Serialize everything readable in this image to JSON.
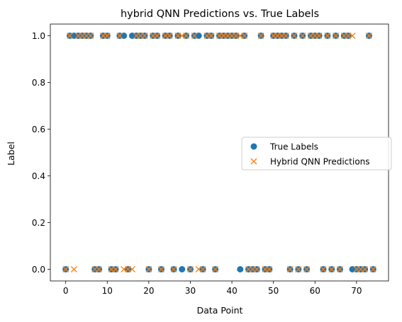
{
  "chart_data": {
    "type": "scatter",
    "title": "hybrid QNN Predictions vs. True Labels",
    "xlabel": "Data Point",
    "ylabel": "Label",
    "xlim": [
      -3.7,
      77.7
    ],
    "ylim": [
      -0.05,
      1.05
    ],
    "x_ticks": [
      0,
      10,
      20,
      30,
      40,
      50,
      60,
      70
    ],
    "y_ticks": [
      0.0,
      0.2,
      0.4,
      0.6,
      0.8,
      1.0
    ],
    "x_tick_labels": [
      "0",
      "10",
      "20",
      "30",
      "40",
      "50",
      "60",
      "70"
    ],
    "y_tick_labels": [
      "0.0",
      "0.2",
      "0.4",
      "0.6",
      "0.8",
      "1.0"
    ],
    "grid": false,
    "legend_position": "center-right",
    "series": [
      {
        "name": "True Labels",
        "marker": "circle",
        "color": "#1f77b4",
        "x": [
          0,
          1,
          2,
          3,
          4,
          5,
          6,
          7,
          8,
          9,
          10,
          11,
          12,
          13,
          14,
          15,
          16,
          17,
          18,
          19,
          20,
          21,
          22,
          23,
          24,
          25,
          26,
          27,
          28,
          29,
          30,
          31,
          32,
          33,
          34,
          35,
          36,
          37,
          38,
          39,
          40,
          41,
          42,
          43,
          44,
          45,
          46,
          47,
          48,
          49,
          50,
          51,
          52,
          53,
          54,
          55,
          56,
          57,
          58,
          59,
          60,
          61,
          62,
          63,
          64,
          65,
          66,
          67,
          68,
          69,
          70,
          71,
          72,
          73,
          74
        ],
        "y": [
          0,
          1,
          1,
          1,
          1,
          1,
          1,
          0,
          0,
          1,
          1,
          0,
          0,
          1,
          1,
          0,
          1,
          1,
          1,
          1,
          0,
          1,
          1,
          0,
          1,
          1,
          0,
          1,
          0,
          1,
          0,
          1,
          1,
          0,
          1,
          1,
          0,
          1,
          1,
          1,
          1,
          1,
          0,
          1,
          0,
          0,
          0,
          1,
          0,
          0,
          1,
          1,
          1,
          1,
          0,
          1,
          0,
          1,
          0,
          1,
          1,
          1,
          0,
          1,
          0,
          1,
          0,
          1,
          1,
          0,
          0,
          0,
          0,
          1,
          0
        ]
      },
      {
        "name": "Hybrid QNN Predictions",
        "marker": "x",
        "color": "#ff7f0e",
        "x": [
          0,
          1,
          2,
          3,
          4,
          5,
          6,
          7,
          8,
          9,
          10,
          11,
          12,
          13,
          14,
          15,
          16,
          17,
          18,
          19,
          20,
          21,
          22,
          23,
          24,
          25,
          26,
          27,
          28,
          29,
          30,
          31,
          32,
          33,
          34,
          35,
          36,
          37,
          38,
          39,
          40,
          41,
          42,
          43,
          44,
          45,
          46,
          47,
          48,
          49,
          50,
          51,
          52,
          53,
          54,
          55,
          56,
          57,
          58,
          59,
          60,
          61,
          62,
          63,
          64,
          65,
          66,
          67,
          68,
          69,
          70,
          71,
          72,
          73,
          74
        ],
        "y": [
          0,
          1,
          0,
          1,
          1,
          1,
          1,
          0,
          0,
          1,
          1,
          0,
          0,
          1,
          0,
          0,
          0,
          1,
          1,
          1,
          0,
          1,
          1,
          0,
          1,
          1,
          0,
          1,
          1,
          1,
          0,
          1,
          0,
          0,
          1,
          1,
          0,
          1,
          1,
          1,
          1,
          1,
          1,
          1,
          0,
          0,
          0,
          1,
          0,
          0,
          1,
          1,
          1,
          1,
          0,
          1,
          0,
          1,
          0,
          1,
          1,
          1,
          0,
          1,
          0,
          1,
          0,
          1,
          1,
          1,
          0,
          0,
          0,
          1,
          0
        ]
      }
    ]
  }
}
